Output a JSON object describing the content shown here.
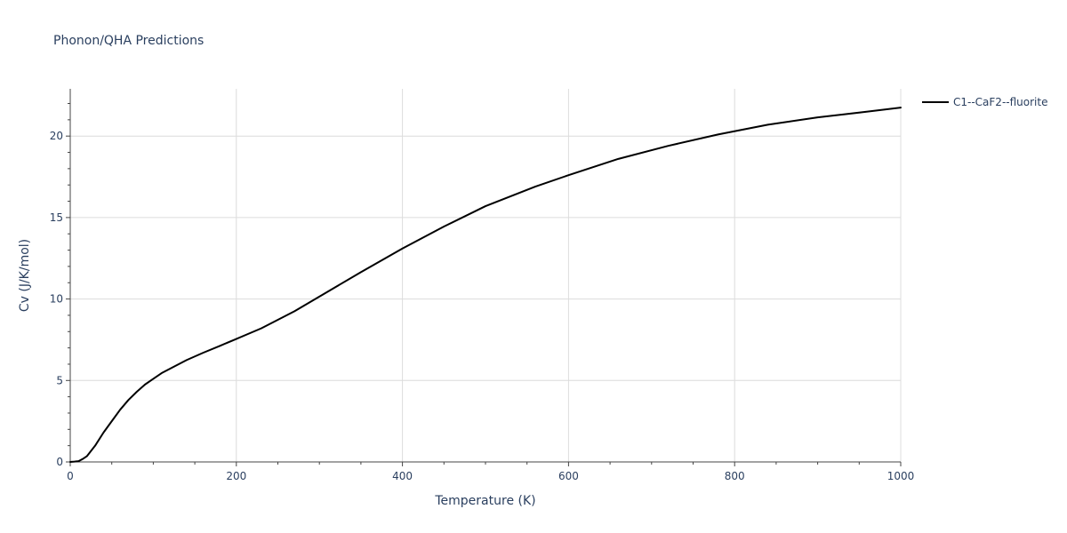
{
  "chart_data": {
    "type": "line",
    "title": "Phonon/QHA Predictions",
    "xlabel": "Temperature (K)",
    "ylabel": "Cv (J/K/mol)",
    "xlim": [
      0,
      1000
    ],
    "ylim": [
      0,
      22.9
    ],
    "x_ticks": [
      0,
      200,
      400,
      600,
      800,
      1000
    ],
    "x_tick_labels": [
      "0",
      "200",
      "400",
      "600",
      "800",
      "1000"
    ],
    "x_minor_ticks": [
      50,
      100,
      150,
      250,
      300,
      350,
      450,
      500,
      550,
      650,
      700,
      750,
      850,
      900,
      950
    ],
    "y_ticks": [
      0,
      5,
      10,
      15,
      20
    ],
    "y_tick_labels": [
      "0",
      "5",
      "10",
      "15",
      "20"
    ],
    "y_minor_ticks": [
      1,
      2,
      3,
      4,
      6,
      7,
      8,
      9,
      11,
      12,
      13,
      14,
      16,
      17,
      18,
      19,
      21,
      22
    ],
    "grid": true,
    "legend_position": "top-right",
    "series": [
      {
        "name": "C1--CaF2--fluorite",
        "color": "#000000",
        "x": [
          0,
          5,
          10,
          15,
          20,
          30,
          40,
          50,
          60,
          70,
          80,
          90,
          100,
          110,
          120,
          140,
          160,
          180,
          200,
          230,
          270,
          300,
          350,
          400,
          450,
          500,
          560,
          600,
          660,
          720,
          780,
          840,
          900,
          960,
          1000
        ],
        "y": [
          0,
          0.02,
          0.05,
          0.18,
          0.35,
          1.0,
          1.8,
          2.5,
          3.2,
          3.8,
          4.3,
          4.75,
          5.1,
          5.45,
          5.72,
          6.25,
          6.7,
          7.12,
          7.55,
          8.2,
          9.25,
          10.15,
          11.65,
          13.1,
          14.45,
          15.7,
          16.9,
          17.6,
          18.6,
          19.4,
          20.1,
          20.7,
          21.15,
          21.5,
          21.75
        ]
      }
    ]
  }
}
